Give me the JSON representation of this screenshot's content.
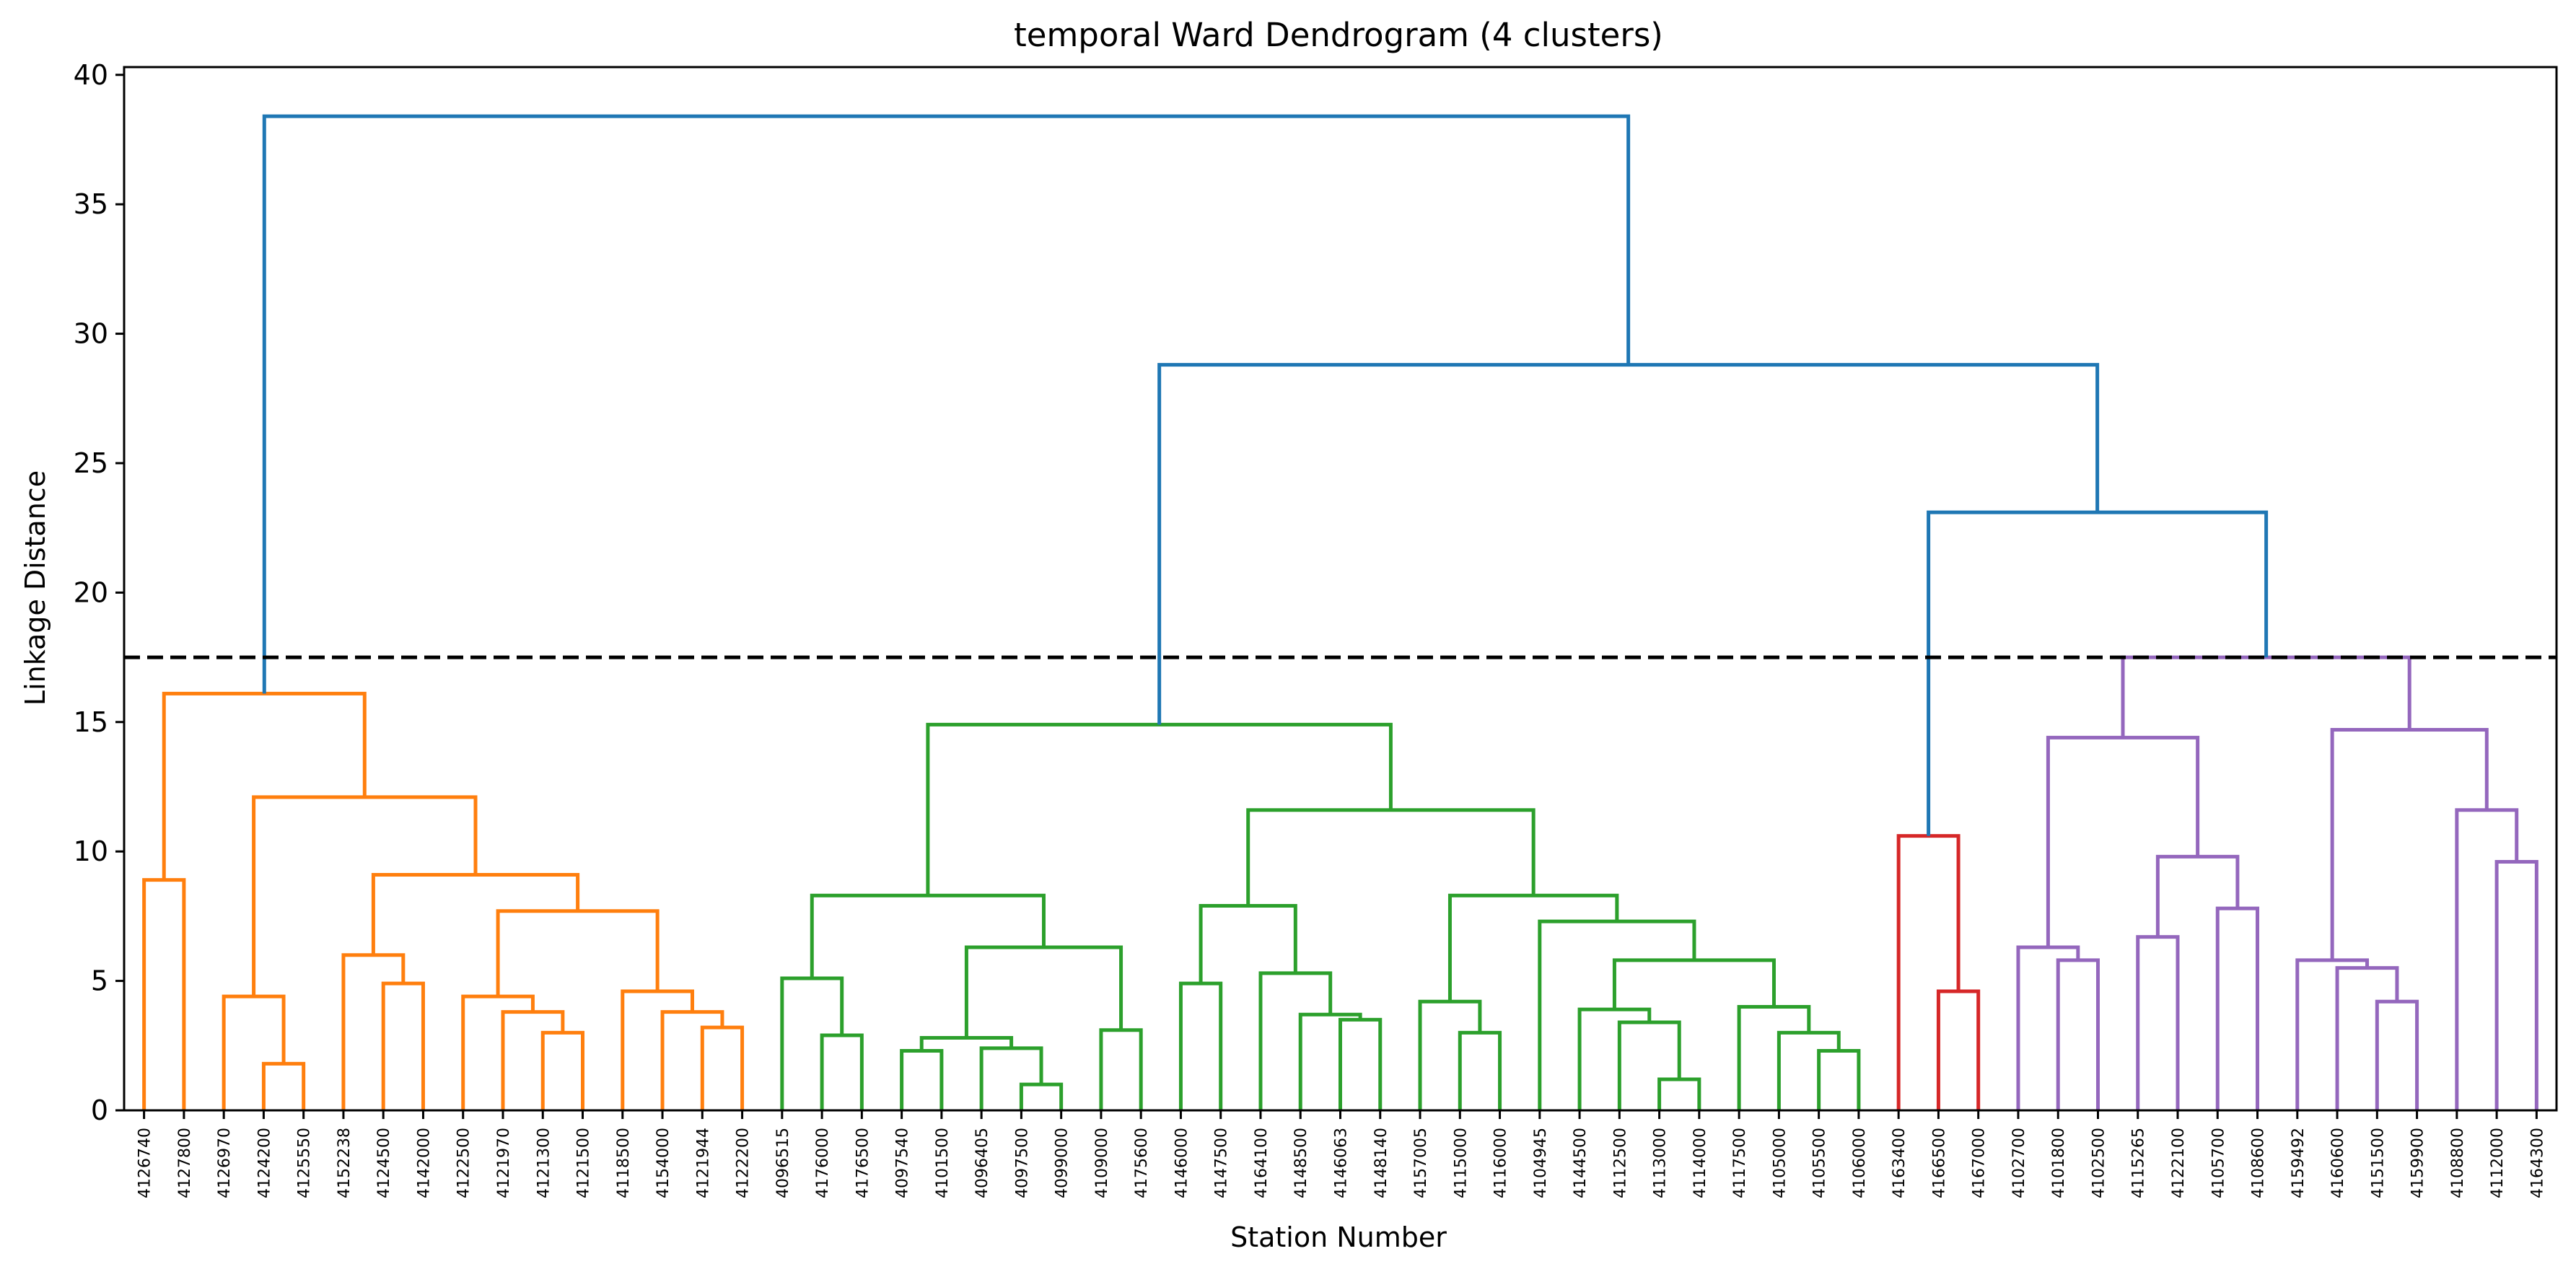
{
  "chart_data": {
    "type": "dendrogram",
    "title": "temporal Ward Dendrogram (4 clusters)",
    "xlabel": "Station Number",
    "ylabel": "Linkage Distance",
    "ylim": [
      0,
      40.3
    ],
    "yticks": [
      0,
      5,
      10,
      15,
      20,
      25,
      30,
      35,
      40
    ],
    "cut_height": 17.5,
    "grid": false,
    "leaves": [
      "4126740",
      "4127800",
      "4126970",
      "4124200",
      "4125550",
      "4152238",
      "4124500",
      "4142000",
      "4122500",
      "4121970",
      "4121300",
      "4121500",
      "4118500",
      "4154000",
      "4121944",
      "4122200",
      "4096515",
      "4176000",
      "4176500",
      "4097540",
      "4101500",
      "4096405",
      "4097500",
      "4099000",
      "4109000",
      "4175600",
      "4146000",
      "4147500",
      "4164100",
      "4148500",
      "4146063",
      "4148140",
      "4157005",
      "4115000",
      "4116000",
      "4104945",
      "4144500",
      "4112500",
      "4113000",
      "4114000",
      "4117500",
      "4105000",
      "4105500",
      "4106000",
      "4163400",
      "4166500",
      "4167000",
      "4102700",
      "4101800",
      "4102500",
      "4115265",
      "4122100",
      "4105700",
      "4108600",
      "4159492",
      "4160600",
      "4151500",
      "4159900",
      "4108800",
      "4112000",
      "4164300"
    ],
    "cluster_colors": {
      "C1": "#ff7f0e",
      "C2": "#2ca02c",
      "C3": "#d62728",
      "C4": "#9467bd",
      "above": "#1f77b4"
    },
    "merges": [
      {
        "a": 0,
        "b": 1,
        "h": 8.9,
        "c": "C1"
      },
      {
        "a": 3,
        "b": 4,
        "h": 1.8,
        "c": "C1"
      },
      {
        "a": 2,
        "b": 62,
        "h": 4.4,
        "c": "C1"
      },
      {
        "a": 6,
        "b": 7,
        "h": 4.9,
        "c": "C1"
      },
      {
        "a": 5,
        "b": 64,
        "h": 6.0,
        "c": "C1"
      },
      {
        "a": 10,
        "b": 11,
        "h": 3.0,
        "c": "C1"
      },
      {
        "a": 9,
        "b": 66,
        "h": 3.8,
        "c": "C1"
      },
      {
        "a": 8,
        "b": 67,
        "h": 4.4,
        "c": "C1"
      },
      {
        "a": 14,
        "b": 15,
        "h": 3.2,
        "c": "C1"
      },
      {
        "a": 13,
        "b": 69,
        "h": 3.8,
        "c": "C1"
      },
      {
        "a": 12,
        "b": 70,
        "h": 4.6,
        "c": "C1"
      },
      {
        "a": 68,
        "b": 71,
        "h": 7.7,
        "c": "C1"
      },
      {
        "a": 65,
        "b": 72,
        "h": 9.1,
        "c": "C1"
      },
      {
        "a": 63,
        "b": 73,
        "h": 12.1,
        "c": "C1"
      },
      {
        "a": 61,
        "b": 74,
        "h": 16.1,
        "c": "C1"
      },
      {
        "a": 17,
        "b": 18,
        "h": 2.9,
        "c": "C2"
      },
      {
        "a": 16,
        "b": 76,
        "h": 5.1,
        "c": "C2"
      },
      {
        "a": 19,
        "b": 20,
        "h": 2.3,
        "c": "C2"
      },
      {
        "a": 22,
        "b": 23,
        "h": 1.0,
        "c": "C2"
      },
      {
        "a": 21,
        "b": 79,
        "h": 2.4,
        "c": "C2"
      },
      {
        "a": 78,
        "b": 80,
        "h": 2.8,
        "c": "C2"
      },
      {
        "a": 24,
        "b": 25,
        "h": 3.1,
        "c": "C2"
      },
      {
        "a": 81,
        "b": 82,
        "h": 6.3,
        "c": "C2"
      },
      {
        "a": 77,
        "b": 83,
        "h": 8.3,
        "c": "C2"
      },
      {
        "a": 26,
        "b": 27,
        "h": 4.9,
        "c": "C2"
      },
      {
        "a": 30,
        "b": 31,
        "h": 3.5,
        "c": "C2"
      },
      {
        "a": 29,
        "b": 86,
        "h": 3.7,
        "c": "C2"
      },
      {
        "a": 28,
        "b": 87,
        "h": 5.3,
        "c": "C2"
      },
      {
        "a": 85,
        "b": 88,
        "h": 7.9,
        "c": "C2"
      },
      {
        "a": 33,
        "b": 34,
        "h": 3.0,
        "c": "C2"
      },
      {
        "a": 32,
        "b": 90,
        "h": 4.2,
        "c": "C2"
      },
      {
        "a": 38,
        "b": 39,
        "h": 1.2,
        "c": "C2"
      },
      {
        "a": 37,
        "b": 92,
        "h": 3.4,
        "c": "C2"
      },
      {
        "a": 36,
        "b": 93,
        "h": 3.9,
        "c": "C2"
      },
      {
        "a": 42,
        "b": 43,
        "h": 2.3,
        "c": "C2"
      },
      {
        "a": 41,
        "b": 95,
        "h": 3.0,
        "c": "C2"
      },
      {
        "a": 40,
        "b": 96,
        "h": 4.0,
        "c": "C2"
      },
      {
        "a": 94,
        "b": 97,
        "h": 5.8,
        "c": "C2"
      },
      {
        "a": 35,
        "b": 98,
        "h": 7.3,
        "c": "C2"
      },
      {
        "a": 91,
        "b": 99,
        "h": 8.3,
        "c": "C2"
      },
      {
        "a": 89,
        "b": 100,
        "h": 11.6,
        "c": "C2"
      },
      {
        "a": 84,
        "b": 101,
        "h": 14.9,
        "c": "C2"
      },
      {
        "a": 45,
        "b": 46,
        "h": 4.6,
        "c": "C3"
      },
      {
        "a": 44,
        "b": 103,
        "h": 10.6,
        "c": "C3"
      },
      {
        "a": 48,
        "b": 49,
        "h": 5.8,
        "c": "C4"
      },
      {
        "a": 47,
        "b": 105,
        "h": 6.3,
        "c": "C4"
      },
      {
        "a": 50,
        "b": 51,
        "h": 6.7,
        "c": "C4"
      },
      {
        "a": 52,
        "b": 53,
        "h": 7.8,
        "c": "C4"
      },
      {
        "a": 107,
        "b": 108,
        "h": 9.8,
        "c": "C4"
      },
      {
        "a": 106,
        "b": 109,
        "h": 14.4,
        "c": "C4"
      },
      {
        "a": 56,
        "b": 57,
        "h": 4.2,
        "c": "C4"
      },
      {
        "a": 55,
        "b": 111,
        "h": 5.5,
        "c": "C4"
      },
      {
        "a": 54,
        "b": 112,
        "h": 5.8,
        "c": "C4"
      },
      {
        "a": 59,
        "b": 60,
        "h": 9.6,
        "c": "C4"
      },
      {
        "a": 58,
        "b": 114,
        "h": 11.6,
        "c": "C4"
      },
      {
        "a": 113,
        "b": 115,
        "h": 14.7,
        "c": "C4"
      },
      {
        "a": 110,
        "b": 116,
        "h": 17.5,
        "c": "C4"
      },
      {
        "a": 104,
        "b": 117,
        "h": 23.1,
        "c": "above"
      },
      {
        "a": 102,
        "b": 118,
        "h": 28.8,
        "c": "above"
      },
      {
        "a": 75,
        "b": 119,
        "h": 38.4,
        "c": "above"
      }
    ]
  }
}
